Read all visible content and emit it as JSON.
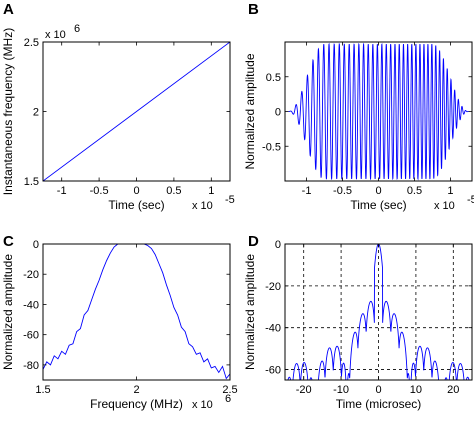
{
  "colors": {
    "line": "#0000ff",
    "grid": "#000000",
    "frame": "#000000"
  },
  "chart_data": [
    {
      "panel": "A",
      "type": "line",
      "xlabel": "Time (sec)",
      "ylabel": "Instantaneous frequency (MHz)",
      "x_exponent": "x 10",
      "x_exponent_power": "-5",
      "y_exponent": "x 10",
      "y_exponent_power": "6",
      "xlim": [
        -1.25,
        1.25
      ],
      "ylim": [
        1.5,
        2.5
      ],
      "xticks": [
        -1,
        -0.5,
        0,
        0.5,
        1
      ],
      "xtick_labels": [
        "-1",
        "-0.5",
        "0",
        "0.5",
        "1"
      ],
      "yticks": [
        1.5,
        2,
        2.5
      ],
      "ytick_labels": [
        "1.5",
        "2",
        "2.5"
      ],
      "grid": false,
      "series": [
        {
          "x": [
            -1.25,
            1.25
          ],
          "y": [
            1.5,
            2.5
          ]
        }
      ]
    },
    {
      "panel": "B",
      "type": "line",
      "xlabel": "Time (sec)",
      "ylabel": "Normalized amplitude",
      "x_exponent": "x 10",
      "x_exponent_power": "-5",
      "xlim": [
        -1.3,
        1.3
      ],
      "ylim": [
        -1,
        1
      ],
      "xticks": [
        -1,
        -0.5,
        0,
        0.5,
        1
      ],
      "xtick_labels": [
        "-1",
        "-0.5",
        "0",
        "0.5",
        "1"
      ],
      "yticks": [
        -0.5,
        0,
        0.5
      ],
      "ytick_labels": [
        "-0.5",
        "0",
        "0.5"
      ],
      "grid": false,
      "signal": {
        "kind": "linear chirp with tapered envelope",
        "t_start": -1.25,
        "t_end": 1.25,
        "cycles": 40,
        "taper": 0.2
      }
    },
    {
      "panel": "C",
      "type": "line",
      "xlabel": "Frequency (MHz)",
      "ylabel": "Normalized amplitude",
      "x_exponent": "x 10",
      "x_exponent_power": "6",
      "xlim": [
        1.5,
        2.5
      ],
      "ylim": [
        -90,
        0
      ],
      "xticks": [
        1.5,
        2,
        2.5
      ],
      "xtick_labels": [
        "1.5",
        "2",
        "2.5"
      ],
      "yticks": [
        0,
        -20,
        -40,
        -60,
        -80
      ],
      "ytick_labels": [
        "0",
        "-20",
        "-40",
        "-60",
        "-80"
      ],
      "grid": false,
      "series": [
        {
          "x": [
            1.5,
            1.52,
            1.54,
            1.56,
            1.58,
            1.6,
            1.62,
            1.64,
            1.66,
            1.68,
            1.7,
            1.72,
            1.74,
            1.76,
            1.78,
            1.8,
            1.82,
            1.84,
            1.86,
            1.88,
            1.9,
            1.92,
            1.94,
            1.96,
            1.98,
            2.0,
            2.02,
            2.04,
            2.06,
            2.08,
            2.1,
            2.12,
            2.14,
            2.16,
            2.18,
            2.2,
            2.22,
            2.24,
            2.26,
            2.28,
            2.3,
            2.32,
            2.34,
            2.36,
            2.38,
            2.4,
            2.42,
            2.44,
            2.46,
            2.48,
            2.5
          ],
          "y": [
            -83,
            -78,
            -80,
            -74,
            -76,
            -71,
            -73,
            -67,
            -66,
            -58,
            -56,
            -47,
            -44,
            -37,
            -30,
            -24,
            -17,
            -11,
            -6,
            -2,
            0,
            0,
            0,
            0,
            0,
            0,
            0,
            0,
            -1,
            -3,
            -7,
            -13,
            -19,
            -27,
            -34,
            -42,
            -47,
            -55,
            -58,
            -66,
            -68,
            -73,
            -72,
            -78,
            -76,
            -82,
            -81,
            -85,
            -81,
            -89,
            -86
          ]
        }
      ]
    },
    {
      "panel": "D",
      "type": "line",
      "xlabel": "Time (microsec)",
      "ylabel": "Normalized amplitude",
      "xlim": [
        -25,
        25
      ],
      "ylim": [
        -65,
        0
      ],
      "xticks": [
        -20,
        -10,
        0,
        10,
        20
      ],
      "xtick_labels": [
        "-20",
        "-10",
        "0",
        "10",
        "20"
      ],
      "yticks": [
        -60,
        -40,
        -20,
        0
      ],
      "ytick_labels": [
        "-60",
        "-40",
        "-20",
        "0"
      ],
      "grid": true,
      "signal": {
        "kind": "compressed pulse sidelobes",
        "mainlobe_peak_db": 0,
        "sidelobe_floor_db": -40
      }
    }
  ]
}
